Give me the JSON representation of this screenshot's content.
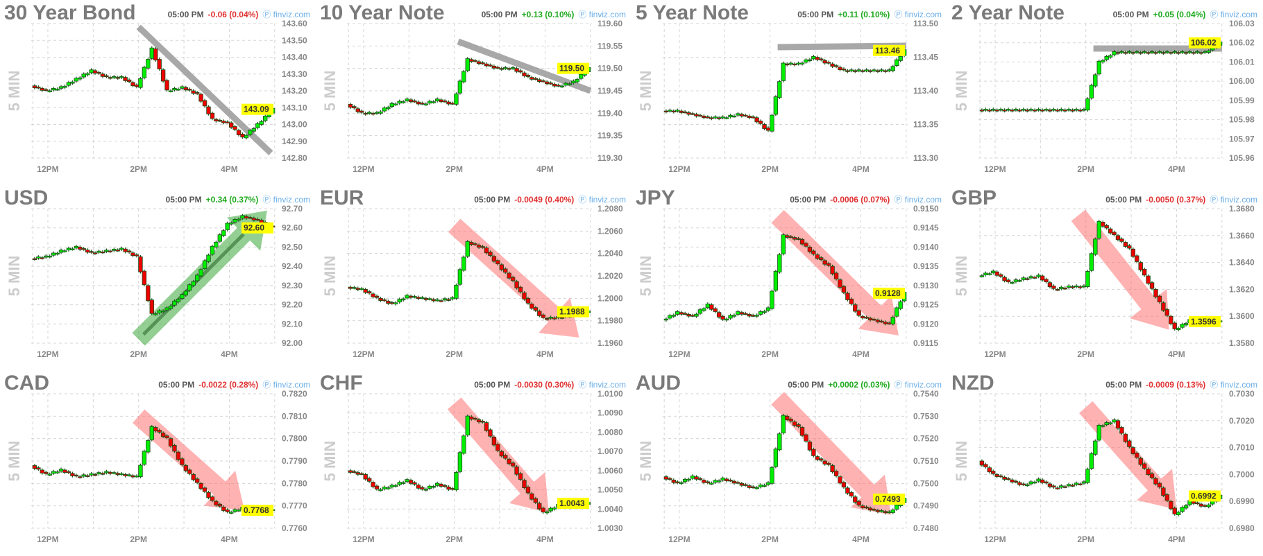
{
  "time_label": "05:00 PM",
  "brand": "finviz.com",
  "interval_label": "5 MIN",
  "colors": {
    "up": "#00ee00",
    "down": "#ee0000",
    "pos_text": "#1faa1f",
    "neg_text": "#e03030",
    "price_tag": "#ffff00",
    "trend_gray": "#999999",
    "arrow_red": "#ff6666",
    "arrow_green": "#3aa83a"
  },
  "chart_data": [
    {
      "type": "candlestick",
      "title": "30 Year Bond",
      "change": "-0.06 (0.04%)",
      "direction": "neg",
      "last": "143.09",
      "yticks": [
        "143.60",
        "143.50",
        "143.40",
        "143.30",
        "143.20",
        "143.10",
        "143.00",
        "142.90",
        "142.80"
      ],
      "ylim": [
        142.8,
        143.6
      ],
      "xticks": [
        "12PM",
        "2PM",
        "4PM"
      ],
      "times": [
        "11:40",
        "12:00",
        "12:20",
        "12:40",
        "13:00",
        "13:20",
        "13:40",
        "14:00",
        "14:20",
        "14:40",
        "15:00",
        "15:20",
        "15:40",
        "16:00",
        "16:20",
        "16:40",
        "17:00"
      ],
      "close": [
        143.23,
        143.2,
        143.22,
        143.27,
        143.32,
        143.28,
        143.28,
        143.22,
        143.45,
        143.2,
        143.22,
        143.18,
        143.03,
        143.01,
        142.92,
        143.0,
        143.09
      ],
      "annotation": {
        "kind": "line",
        "from": [
          "14:00",
          143.58
        ],
        "to": [
          "16:55",
          142.83
        ]
      }
    },
    {
      "type": "candlestick",
      "title": "10 Year Note",
      "change": "+0.13 (0.10%)",
      "direction": "pos",
      "last": "119.50",
      "yticks": [
        "119.60",
        "119.55",
        "119.50",
        "119.45",
        "119.40",
        "119.35",
        "119.30"
      ],
      "ylim": [
        119.3,
        119.6
      ],
      "xticks": [
        "12PM",
        "2PM",
        "4PM"
      ],
      "times": [
        "11:40",
        "12:00",
        "12:20",
        "12:40",
        "13:00",
        "13:20",
        "13:40",
        "14:00",
        "14:20",
        "14:40",
        "15:00",
        "15:20",
        "15:40",
        "16:00",
        "16:20",
        "16:40",
        "17:00"
      ],
      "close": [
        119.42,
        119.4,
        119.4,
        119.42,
        119.43,
        119.42,
        119.43,
        119.42,
        119.52,
        119.51,
        119.5,
        119.5,
        119.48,
        119.47,
        119.46,
        119.47,
        119.5
      ],
      "annotation": {
        "kind": "line",
        "from": [
          "14:05",
          119.56
        ],
        "to": [
          "17:00",
          119.45
        ]
      }
    },
    {
      "type": "candlestick",
      "title": "5 Year Note",
      "change": "+0.11 (0.10%)",
      "direction": "pos",
      "last": "113.46",
      "yticks": [
        "113.50",
        "113.45",
        "113.40",
        "113.35",
        "113.30"
      ],
      "ylim": [
        113.3,
        113.5
      ],
      "xticks": [
        "12PM",
        "2PM",
        "4PM"
      ],
      "times": [
        "11:40",
        "12:00",
        "12:20",
        "12:40",
        "13:00",
        "13:20",
        "13:40",
        "14:00",
        "14:20",
        "14:40",
        "15:00",
        "15:20",
        "15:40",
        "16:00",
        "16:20",
        "16:40",
        "17:00"
      ],
      "close": [
        113.37,
        113.37,
        113.365,
        113.36,
        113.36,
        113.365,
        113.36,
        113.34,
        113.44,
        113.44,
        113.45,
        113.44,
        113.43,
        113.43,
        113.43,
        113.43,
        113.46
      ],
      "annotation": {
        "kind": "line",
        "from": [
          "14:10",
          113.465
        ],
        "to": [
          "17:00",
          113.467
        ]
      }
    },
    {
      "type": "candlestick",
      "title": "2 Year Note",
      "change": "+0.05 (0.04%)",
      "direction": "pos",
      "last": "106.02",
      "yticks": [
        "106.03",
        "106.02",
        "106.01",
        "106.00",
        "105.99",
        "105.98",
        "105.97",
        "105.96"
      ],
      "ylim": [
        105.96,
        106.03
      ],
      "xticks": [
        "12PM",
        "2PM",
        "4PM"
      ],
      "times": [
        "11:40",
        "12:00",
        "12:20",
        "12:40",
        "13:00",
        "13:20",
        "13:40",
        "14:00",
        "14:20",
        "14:40",
        "15:00",
        "15:20",
        "15:40",
        "16:00",
        "16:20",
        "16:40",
        "17:00"
      ],
      "close": [
        105.985,
        105.985,
        105.985,
        105.985,
        105.985,
        105.985,
        105.985,
        105.985,
        106.01,
        106.015,
        106.015,
        106.015,
        106.015,
        106.015,
        106.015,
        106.015,
        106.02
      ],
      "annotation": {
        "kind": "line",
        "from": [
          "14:10",
          106.017
        ],
        "to": [
          "17:00",
          106.017
        ]
      }
    },
    {
      "type": "candlestick",
      "title": "USD",
      "change": "+0.34 (0.37%)",
      "direction": "pos",
      "last": "92.60",
      "yticks": [
        "92.70",
        "92.60",
        "92.50",
        "92.40",
        "92.30",
        "92.20",
        "92.10",
        "92.00"
      ],
      "ylim": [
        92.0,
        92.7
      ],
      "xticks": [
        "12PM",
        "2PM",
        "4PM"
      ],
      "times": [
        "11:40",
        "12:00",
        "12:20",
        "12:40",
        "13:00",
        "13:20",
        "13:40",
        "14:00",
        "14:20",
        "14:40",
        "15:00",
        "15:20",
        "15:40",
        "16:00",
        "16:20",
        "16:40",
        "17:00"
      ],
      "close": [
        92.44,
        92.45,
        92.48,
        92.5,
        92.47,
        92.48,
        92.49,
        92.45,
        92.15,
        92.18,
        92.25,
        92.35,
        92.5,
        92.62,
        92.66,
        92.64,
        92.6
      ],
      "annotation": {
        "kind": "arrow",
        "color": "green",
        "from": [
          "14:00",
          92.02
        ],
        "to": [
          "16:50",
          92.69
        ]
      }
    },
    {
      "type": "candlestick",
      "title": "EUR",
      "change": "-0.0049 (0.40%)",
      "direction": "neg",
      "last": "1.1988",
      "yticks": [
        "1.2080",
        "1.2060",
        "1.2040",
        "1.2020",
        "1.2000",
        "1.1980",
        "1.1960"
      ],
      "ylim": [
        1.196,
        1.208
      ],
      "xticks": [
        "12PM",
        "2PM",
        "4PM"
      ],
      "times": [
        "11:40",
        "12:00",
        "12:20",
        "12:40",
        "13:00",
        "13:20",
        "13:40",
        "14:00",
        "14:20",
        "14:40",
        "15:00",
        "15:20",
        "15:40",
        "16:00",
        "16:20",
        "16:40",
        "17:00"
      ],
      "close": [
        1.201,
        1.2008,
        1.2,
        1.1995,
        1.2002,
        1.2,
        1.1998,
        1.2,
        1.205,
        1.2045,
        1.203,
        1.2015,
        1.1995,
        1.1982,
        1.1983,
        1.1985,
        1.1988
      ],
      "annotation": {
        "kind": "arrow",
        "color": "red",
        "from": [
          "14:00",
          1.2065
        ],
        "to": [
          "16:45",
          1.1965
        ]
      }
    },
    {
      "type": "candlestick",
      "title": "JPY",
      "change": "-0.0006 (0.07%)",
      "direction": "neg",
      "last": "0.9128",
      "yticks": [
        "0.9150",
        "0.9145",
        "0.9140",
        "0.9135",
        "0.9130",
        "0.9125",
        "0.9120",
        "0.9115"
      ],
      "ylim": [
        0.9115,
        0.915
      ],
      "xticks": [
        "12PM",
        "2PM",
        "4PM"
      ],
      "times": [
        "11:40",
        "12:00",
        "12:20",
        "12:40",
        "13:00",
        "13:20",
        "13:40",
        "14:00",
        "14:20",
        "14:40",
        "15:00",
        "15:20",
        "15:40",
        "16:00",
        "16:20",
        "16:40",
        "17:00"
      ],
      "close": [
        0.9121,
        0.9123,
        0.9122,
        0.9125,
        0.9121,
        0.9123,
        0.9122,
        0.9124,
        0.9143,
        0.9142,
        0.9138,
        0.9135,
        0.9128,
        0.9122,
        0.9121,
        0.912,
        0.9128
      ],
      "annotation": {
        "kind": "arrow",
        "color": "red",
        "from": [
          "14:10",
          0.9148
        ],
        "to": [
          "16:50",
          0.9117
        ]
      }
    },
    {
      "type": "candlestick",
      "title": "GBP",
      "change": "-0.0050 (0.37%)",
      "direction": "neg",
      "last": "1.3596",
      "yticks": [
        "1.3680",
        "1.3660",
        "1.3640",
        "1.3620",
        "1.3600",
        "1.3580"
      ],
      "ylim": [
        1.358,
        1.368
      ],
      "xticks": [
        "12PM",
        "2PM",
        "4PM"
      ],
      "times": [
        "11:40",
        "12:00",
        "12:20",
        "12:40",
        "13:00",
        "13:20",
        "13:40",
        "14:00",
        "14:20",
        "14:40",
        "15:00",
        "15:20",
        "15:40",
        "16:00",
        "16:20",
        "16:40",
        "17:00"
      ],
      "close": [
        1.363,
        1.3633,
        1.3625,
        1.3628,
        1.363,
        1.362,
        1.3622,
        1.3622,
        1.367,
        1.366,
        1.365,
        1.363,
        1.361,
        1.359,
        1.3597,
        1.3597,
        1.3596
      ],
      "annotation": {
        "kind": "arrow",
        "color": "red",
        "from": [
          "13:50",
          1.3675
        ],
        "to": [
          "15:50",
          1.359
        ]
      }
    },
    {
      "type": "candlestick",
      "title": "CAD",
      "change": "-0.0022 (0.28%)",
      "direction": "neg",
      "last": "0.7768",
      "yticks": [
        "0.7820",
        "0.7810",
        "0.7800",
        "0.7790",
        "0.7780",
        "0.7770",
        "0.7760"
      ],
      "ylim": [
        0.776,
        0.782
      ],
      "xticks": [
        "12PM",
        "2PM",
        "4PM"
      ],
      "times": [
        "11:40",
        "12:00",
        "12:20",
        "12:40",
        "13:00",
        "13:20",
        "13:40",
        "14:00",
        "14:20",
        "14:40",
        "15:00",
        "15:20",
        "15:40",
        "16:00",
        "16:20",
        "16:40",
        "17:00"
      ],
      "close": [
        0.7788,
        0.7784,
        0.7786,
        0.7783,
        0.7784,
        0.7785,
        0.7784,
        0.7783,
        0.7805,
        0.78,
        0.7788,
        0.778,
        0.7772,
        0.7767,
        0.7769,
        0.7769,
        0.7768
      ],
      "annotation": {
        "kind": "arrow",
        "color": "red",
        "from": [
          "14:00",
          0.781
        ],
        "to": [
          "16:20",
          0.7768
        ]
      }
    },
    {
      "type": "candlestick",
      "title": "CHF",
      "change": "-0.0030 (0.30%)",
      "direction": "neg",
      "last": "1.0043",
      "yticks": [
        "1.0100",
        "1.0090",
        "1.0080",
        "1.0070",
        "1.0060",
        "1.0050",
        "1.0040",
        "1.0030"
      ],
      "ylim": [
        1.003,
        1.01
      ],
      "xticks": [
        "12PM",
        "2PM",
        "4PM"
      ],
      "times": [
        "11:40",
        "12:00",
        "12:20",
        "12:40",
        "13:00",
        "13:20",
        "13:40",
        "14:00",
        "14:20",
        "14:40",
        "15:00",
        "15:20",
        "15:40",
        "16:00",
        "16:20",
        "16:40",
        "17:00"
      ],
      "close": [
        1.006,
        1.0058,
        1.005,
        1.0052,
        1.0055,
        1.005,
        1.0053,
        1.005,
        1.0088,
        1.0085,
        1.007,
        1.0062,
        1.0048,
        1.0038,
        1.0042,
        1.0041,
        1.0043
      ],
      "annotation": {
        "kind": "arrow",
        "color": "red",
        "from": [
          "14:00",
          1.0095
        ],
        "to": [
          "16:05",
          1.0038
        ]
      }
    },
    {
      "type": "candlestick",
      "title": "AUD",
      "change": "+0.0002 (0.03%)",
      "direction": "pos",
      "last": "0.7493",
      "yticks": [
        "0.7540",
        "0.7530",
        "0.7520",
        "0.7510",
        "0.7500",
        "0.7490",
        "0.7480"
      ],
      "ylim": [
        0.748,
        0.754
      ],
      "xticks": [
        "12PM",
        "2PM",
        "4PM"
      ],
      "times": [
        "11:40",
        "12:00",
        "12:20",
        "12:40",
        "13:00",
        "13:20",
        "13:40",
        "14:00",
        "14:20",
        "14:40",
        "15:00",
        "15:20",
        "15:40",
        "16:00",
        "16:20",
        "16:40",
        "17:00"
      ],
      "close": [
        0.7503,
        0.75,
        0.7503,
        0.75,
        0.7502,
        0.75,
        0.7498,
        0.75,
        0.753,
        0.7525,
        0.7512,
        0.7508,
        0.7498,
        0.749,
        0.7488,
        0.7487,
        0.7493
      ],
      "annotation": {
        "kind": "arrow",
        "color": "red",
        "from": [
          "14:10",
          0.7538
        ],
        "to": [
          "16:40",
          0.7486
        ]
      }
    },
    {
      "type": "candlestick",
      "title": "NZD",
      "change": "-0.0009 (0.13%)",
      "direction": "neg",
      "last": "0.6992",
      "yticks": [
        "0.7030",
        "0.7020",
        "0.7010",
        "0.7000",
        "0.6990",
        "0.6980"
      ],
      "ylim": [
        0.698,
        0.703
      ],
      "xticks": [
        "12PM",
        "2PM",
        "4PM"
      ],
      "times": [
        "11:40",
        "12:00",
        "12:20",
        "12:40",
        "13:00",
        "13:20",
        "13:40",
        "14:00",
        "14:20",
        "14:40",
        "15:00",
        "15:20",
        "15:40",
        "16:00",
        "16:20",
        "16:40",
        "17:00"
      ],
      "close": [
        0.7005,
        0.7,
        0.6998,
        0.6996,
        0.6998,
        0.6995,
        0.6996,
        0.6997,
        0.7018,
        0.702,
        0.701,
        0.7002,
        0.6995,
        0.6985,
        0.699,
        0.6988,
        0.6992
      ],
      "annotation": {
        "kind": "arrow",
        "color": "red",
        "from": [
          "14:00",
          0.7025
        ],
        "to": [
          "16:00",
          0.6987
        ]
      }
    }
  ]
}
